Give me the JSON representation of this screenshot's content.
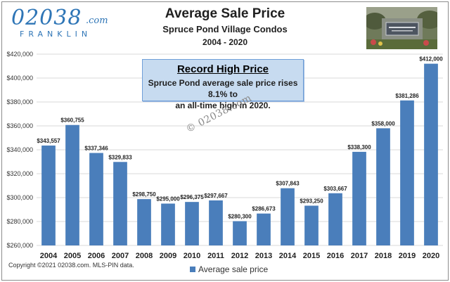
{
  "logo": {
    "main": "02038",
    "suffix": ".com",
    "sub": "FRANKLIN"
  },
  "header": {
    "title": "Average Sale Price",
    "subtitle": "Spruce Pond Village Condos",
    "years": "2004 - 2020"
  },
  "callout": {
    "title": "Record High Price",
    "line1": "Spruce Pond average sale price rises 8.1% to",
    "line2": "an all-time high in 2020."
  },
  "watermark": "© 02038.com",
  "copyright": "Copyright ©2021 02038.com.  MLS-PIN data.",
  "legend": {
    "label": "Average sale price"
  },
  "colors": {
    "bar": "#4a7ebb",
    "grid": "#d9d9d9",
    "text": "#1f1f1f",
    "title": "#1f1f1f",
    "logo": "#2e75b6"
  },
  "chart_data": {
    "type": "bar",
    "title": "Average Sale Price",
    "subtitle": "Spruce Pond Village Condos",
    "categories": [
      "2004",
      "2005",
      "2006",
      "2007",
      "2008",
      "2009",
      "2010",
      "2011",
      "2012",
      "2013",
      "2014",
      "2015",
      "2016",
      "2017",
      "2018",
      "2019",
      "2020"
    ],
    "series": [
      {
        "name": "Average sale price",
        "values": [
          343557,
          360755,
          337346,
          329833,
          298750,
          295000,
          296375,
          297667,
          280300,
          286673,
          307843,
          293250,
          303667,
          338300,
          358000,
          381286,
          412000
        ],
        "labels": [
          "$343,557",
          "$360,755",
          "$337,346",
          "$329,833",
          "$298,750",
          "$295,000",
          "$296,375",
          "$297,667",
          "$280,300",
          "$286,673",
          "$307,843",
          "$293,250",
          "$303,667",
          "$338,300",
          "$358,000",
          "$381,286",
          "$412,000"
        ]
      }
    ],
    "ylim": [
      260000,
      420000
    ],
    "yticks": [
      260000,
      280000,
      300000,
      320000,
      340000,
      360000,
      380000,
      400000,
      420000
    ],
    "ytick_labels": [
      "$260,000",
      "$280,000",
      "$300,000",
      "$320,000",
      "$340,000",
      "$360,000",
      "$380,000",
      "$400,000",
      "$420,000"
    ],
    "xlabel": "",
    "ylabel": "",
    "grid": true,
    "legend_position": "bottom"
  }
}
